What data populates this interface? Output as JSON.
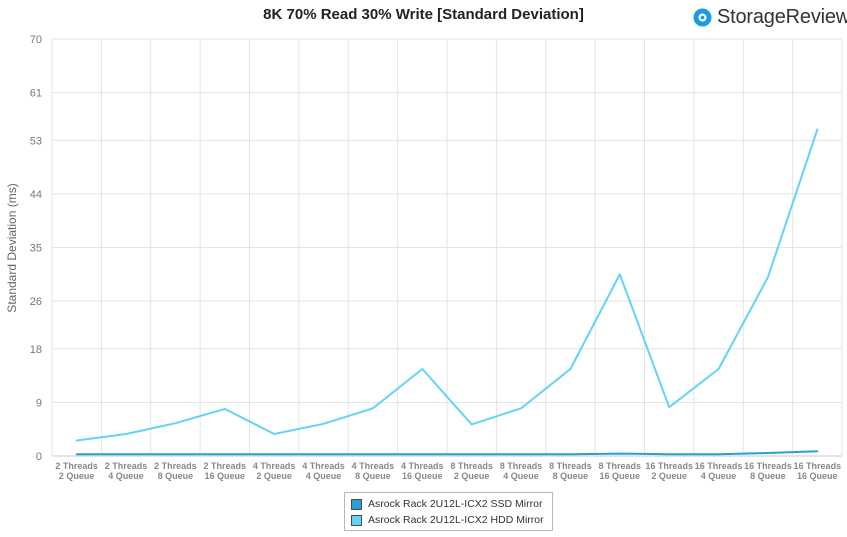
{
  "title": "8K 70% Read 30% Write [Standard Deviation]",
  "brand": {
    "name": "StorageReview",
    "icon": "storagereview-logo-icon",
    "color": "#1e9be3"
  },
  "chart_data": {
    "type": "line",
    "title": "8K 70% Read 30% Write [Standard Deviation]",
    "xlabel": "",
    "ylabel": "Standard Deviation (ms)",
    "ylim": [
      0,
      70
    ],
    "yticks": [
      "0",
      "9",
      "18",
      "26",
      "35",
      "44",
      "53",
      "61",
      "70"
    ],
    "categories": [
      [
        "2 Threads",
        "2 Queue"
      ],
      [
        "2 Threads",
        "4 Queue"
      ],
      [
        "2 Threads",
        "8 Queue"
      ],
      [
        "2 Threads",
        "16 Queue"
      ],
      [
        "4 Threads",
        "2 Queue"
      ],
      [
        "4 Threads",
        "4 Queue"
      ],
      [
        "4 Threads",
        "8 Queue"
      ],
      [
        "4 Threads",
        "16 Queue"
      ],
      [
        "8 Threads",
        "2 Queue"
      ],
      [
        "8 Threads",
        "4 Queue"
      ],
      [
        "8 Threads",
        "8 Queue"
      ],
      [
        "8 Threads",
        "16 Queue"
      ],
      [
        "16 Threads",
        "2 Queue"
      ],
      [
        "16 Threads",
        "4 Queue"
      ],
      [
        "16 Threads",
        "8 Queue"
      ],
      [
        "16 Threads",
        "16 Queue"
      ]
    ],
    "grid": true,
    "legend_position": "bottom",
    "series": [
      {
        "name": "Asrock Rack 2U12L-ICX2 SSD Mirror",
        "color": "#2d9fd6",
        "values": [
          0.3,
          0.3,
          0.3,
          0.3,
          0.3,
          0.3,
          0.3,
          0.3,
          0.3,
          0.3,
          0.3,
          0.4,
          0.3,
          0.3,
          0.5,
          0.8
        ]
      },
      {
        "name": "Asrock Rack 2U12L-ICX2 HDD Mirror",
        "color": "#63d3f7",
        "values": [
          2.6,
          3.7,
          5.5,
          7.9,
          3.7,
          5.4,
          8.0,
          14.6,
          5.3,
          8.0,
          14.6,
          30.5,
          8.2,
          14.6,
          30.0,
          54.8
        ]
      }
    ]
  }
}
